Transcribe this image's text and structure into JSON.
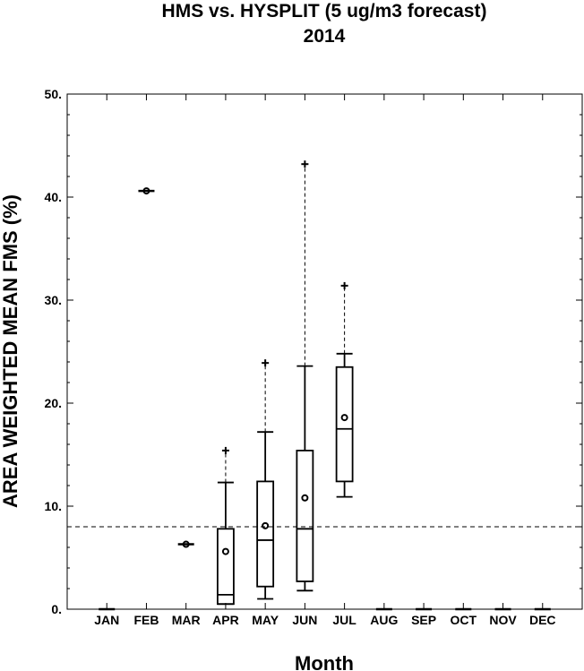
{
  "chart_data": {
    "type": "box",
    "title": "HMS vs. HYSPLIT (5 ug/m3 forecast)",
    "subtitle": "2014",
    "xlabel": "Month",
    "ylabel": "AREA WEIGHTED MEAN FMS (%)",
    "ylim": [
      0,
      50
    ],
    "yticks": [
      0,
      10,
      20,
      30,
      40,
      50
    ],
    "ytick_labels": [
      "0.",
      "10.",
      "20.",
      "30.",
      "40.",
      "50."
    ],
    "categories": [
      "JAN",
      "FEB",
      "MAR",
      "APR",
      "MAY",
      "JUN",
      "JUL",
      "AUG",
      "SEP",
      "OCT",
      "NOV",
      "DEC"
    ],
    "reference_line": 8.0,
    "boxes": [
      {
        "month": "JAN",
        "min": 0,
        "q1": 0,
        "median": 0,
        "q3": 0,
        "max": 0,
        "mean": null,
        "outlier": null
      },
      {
        "month": "FEB",
        "min": 40.6,
        "q1": 40.6,
        "median": 40.6,
        "q3": 40.6,
        "max": 40.6,
        "mean": 40.6,
        "outlier": null
      },
      {
        "month": "MAR",
        "min": 6.3,
        "q1": 6.3,
        "median": 6.3,
        "q3": 6.3,
        "max": 6.3,
        "mean": 6.3,
        "outlier": null
      },
      {
        "month": "APR",
        "min": 0.5,
        "q1": 0.5,
        "median": 1.4,
        "q3": 7.8,
        "max": 12.3,
        "mean": 5.6,
        "outlier": 15.4
      },
      {
        "month": "MAY",
        "min": 1.0,
        "q1": 2.2,
        "median": 6.7,
        "q3": 12.4,
        "max": 17.2,
        "mean": 8.1,
        "outlier": 23.9
      },
      {
        "month": "JUN",
        "min": 1.8,
        "q1": 2.7,
        "median": 7.8,
        "q3": 15.4,
        "max": 23.6,
        "mean": 10.8,
        "outlier": 43.2
      },
      {
        "month": "JUL",
        "min": 10.9,
        "q1": 12.4,
        "median": 17.5,
        "q3": 23.5,
        "max": 24.8,
        "mean": 18.6,
        "outlier": 31.4
      },
      {
        "month": "AUG",
        "min": 0,
        "q1": 0,
        "median": 0,
        "q3": 0,
        "max": 0,
        "mean": null,
        "outlier": null
      },
      {
        "month": "SEP",
        "min": 0,
        "q1": 0,
        "median": 0,
        "q3": 0,
        "max": 0,
        "mean": null,
        "outlier": null
      },
      {
        "month": "OCT",
        "min": 0,
        "q1": 0,
        "median": 0,
        "q3": 0,
        "max": 0,
        "mean": null,
        "outlier": null
      },
      {
        "month": "NOV",
        "min": 0,
        "q1": 0,
        "median": 0,
        "q3": 0,
        "max": 0,
        "mean": null,
        "outlier": null
      },
      {
        "month": "DEC",
        "min": 0,
        "q1": 0,
        "median": 0,
        "q3": 0,
        "max": 0,
        "mean": null,
        "outlier": null
      }
    ],
    "grid": false,
    "colors": {
      "line": "#000000",
      "background": "#ffffff"
    }
  }
}
